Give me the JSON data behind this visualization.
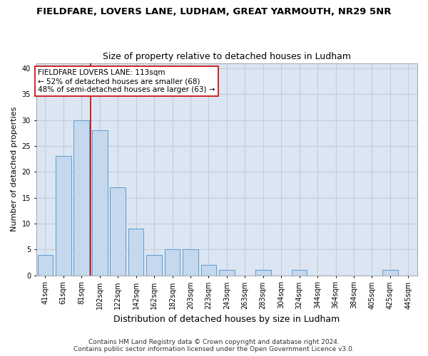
{
  "title": "FIELDFARE, LOVERS LANE, LUDHAM, GREAT YARMOUTH, NR29 5NR",
  "subtitle": "Size of property relative to detached houses in Ludham",
  "xlabel": "Distribution of detached houses by size in Ludham",
  "ylabel": "Number of detached properties",
  "categories": [
    "41sqm",
    "61sqm",
    "81sqm",
    "102sqm",
    "122sqm",
    "142sqm",
    "162sqm",
    "182sqm",
    "203sqm",
    "223sqm",
    "243sqm",
    "263sqm",
    "283sqm",
    "304sqm",
    "324sqm",
    "344sqm",
    "364sqm",
    "384sqm",
    "405sqm",
    "425sqm",
    "445sqm"
  ],
  "values": [
    4,
    23,
    30,
    28,
    17,
    9,
    4,
    5,
    5,
    2,
    1,
    0,
    1,
    0,
    1,
    0,
    0,
    0,
    0,
    1,
    0
  ],
  "bar_color": "#c5d8ed",
  "bar_edge_color": "#5b9bd5",
  "grid_color": "#c0ccdd",
  "background_color": "#dce6f2",
  "annotation_text": "FIELDFARE LOVERS LANE: 113sqm\n← 52% of detached houses are smaller (68)\n48% of semi-detached houses are larger (63) →",
  "annotation_box_color": "#ffffff",
  "annotation_box_edge": "#cc0000",
  "vline_color": "#cc0000",
  "vline_x": 2.5,
  "ylim": [
    0,
    41
  ],
  "yticks": [
    0,
    5,
    10,
    15,
    20,
    25,
    30,
    35,
    40
  ],
  "footer_line1": "Contains HM Land Registry data © Crown copyright and database right 2024.",
  "footer_line2": "Contains public sector information licensed under the Open Government Licence v3.0.",
  "title_fontsize": 9.5,
  "subtitle_fontsize": 9,
  "xlabel_fontsize": 9,
  "ylabel_fontsize": 8,
  "tick_fontsize": 7,
  "annotation_fontsize": 7.5,
  "footer_fontsize": 6.5
}
